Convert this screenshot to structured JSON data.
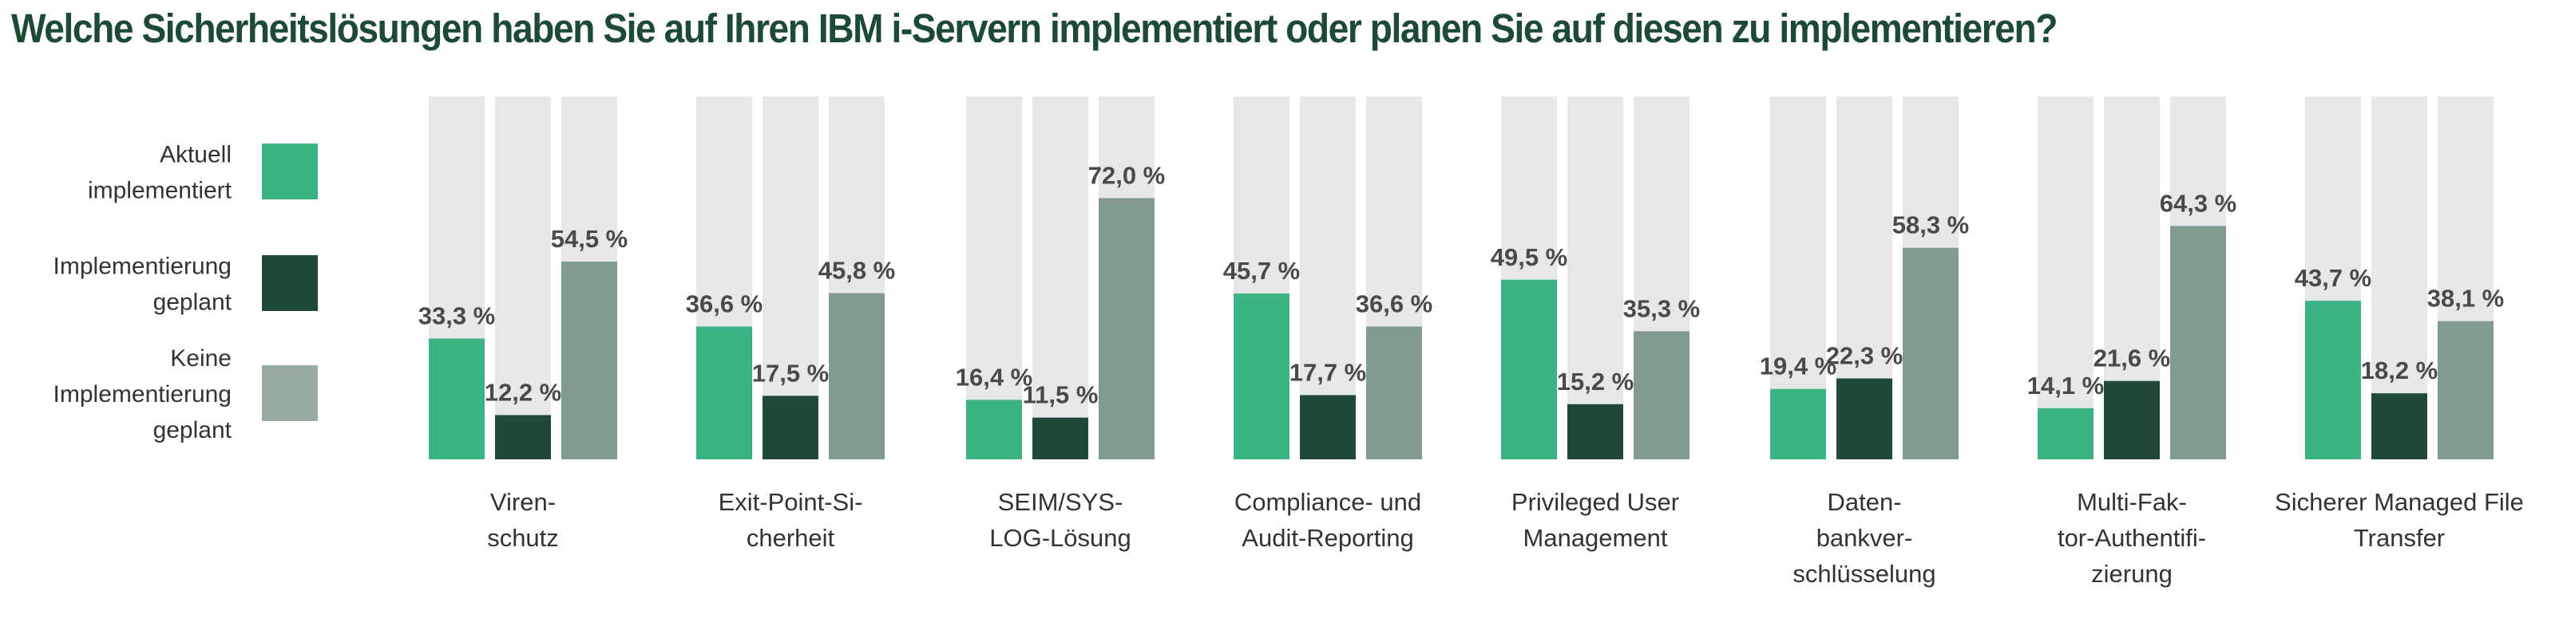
{
  "title": "Welche Sicherheitslösungen haben Sie auf Ihren IBM i-Servern implementiert oder planen Sie auf diesen zu implementieren?",
  "colors": {
    "title": "#1d4a35",
    "track": "#e6e7e8",
    "text": "#333333",
    "value_text": "#4a4a4a"
  },
  "chart_data": {
    "type": "bar",
    "title": "Welche Sicherheitslösungen haben Sie auf Ihren IBM i-Servern implementiert oder planen Sie auf diesen zu implementieren?",
    "ylim": [
      0,
      100
    ],
    "grid": false,
    "legend_position": "left",
    "value_format": "{v} %",
    "categories": [
      [
        "Viren-",
        "schutz"
      ],
      [
        "Exit-Point-Si-",
        "cherheit"
      ],
      [
        "SEIM/SYS-",
        "LOG-Lösung"
      ],
      [
        "Compliance- und",
        "Audit-Reporting"
      ],
      [
        "Privileged User",
        "Management"
      ],
      [
        "Daten-",
        "bankver-",
        "schlüsselung"
      ],
      [
        "Multi-Fak-",
        "tor-Authentifi-",
        "zierung"
      ],
      [
        "Sicherer Managed File",
        "Transfer"
      ]
    ],
    "series": [
      {
        "name": [
          "Aktuell",
          "implementiert"
        ],
        "color": "#3cb382",
        "values": [
          33.3,
          36.6,
          16.4,
          45.7,
          49.5,
          19.4,
          14.1,
          43.7
        ],
        "labels": [
          "33,3",
          "36,6",
          "16,4",
          "45,7",
          "49,5",
          "19,4",
          "14,1",
          "43,7"
        ]
      },
      {
        "name": [
          "Implementierung",
          "geplant"
        ],
        "color": "#1e4a37",
        "values": [
          12.2,
          17.5,
          11.5,
          17.7,
          15.2,
          22.3,
          21.6,
          18.2
        ],
        "labels": [
          "12,2",
          "17,5",
          "11,5",
          "17,7",
          "15,2",
          "22,3",
          "21,6",
          "18,2"
        ]
      },
      {
        "name": [
          "Keine",
          "Implementierung",
          "geplant"
        ],
        "color": "#839b8e",
        "legend_color": "#97aca0",
        "values": [
          54.5,
          45.8,
          72.0,
          36.6,
          35.3,
          58.3,
          64.3,
          38.1
        ],
        "labels": [
          "54,5",
          "45,8",
          "72,0",
          "36,6",
          "35,3",
          "58,3",
          "64,3",
          "38,1"
        ]
      }
    ]
  }
}
